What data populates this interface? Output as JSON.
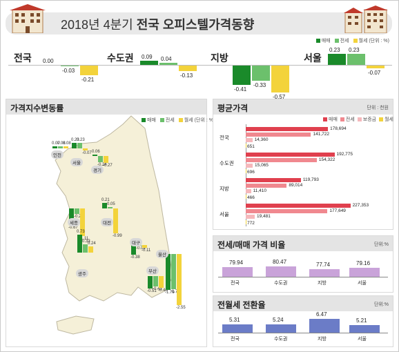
{
  "title": {
    "prefix": "2018년 4분기 ",
    "bold": "전국 오피스텔가격동향"
  },
  "colors": {
    "sale": "#1a8a2a",
    "jeonse": "#6cc06c",
    "wolse": "#f3d33b",
    "avg_sale": "#e0404e",
    "avg_jeonse": "#f0888f",
    "avg_deposit": "#f5b8bb",
    "avg_wolse": "#f3d33b",
    "ratio": "#c9a3d9",
    "conv": "#6b7cc7"
  },
  "legend_top": {
    "sale": "매매",
    "jeonse": "전세",
    "wolse": "월세",
    "unit": "(단위 : %)"
  },
  "summary": [
    {
      "label": "전국",
      "values": [
        "0.00",
        "-0.03",
        "-0.21"
      ],
      "nums": [
        0.0,
        -0.03,
        -0.21
      ]
    },
    {
      "label": "수도권",
      "values": [
        "0.09",
        "0.04",
        "-0.13"
      ],
      "nums": [
        0.09,
        0.04,
        -0.13
      ]
    },
    {
      "label": "지방",
      "values": [
        "-0.41",
        "-0.33",
        "-0.57"
      ],
      "nums": [
        -0.41,
        -0.33,
        -0.57
      ]
    },
    {
      "label": "서울",
      "values": [
        "0.23",
        "0.23",
        "-0.07"
      ],
      "nums": [
        0.23,
        0.23,
        -0.07
      ]
    }
  ],
  "map_panel": {
    "title": "가격지수변동률",
    "legend": {
      "sale": "매매",
      "jeonse": "전세",
      "wolse": "월세",
      "unit": "(단위 : %)"
    },
    "regions": [
      {
        "name": "인천",
        "values": [
          "0.07",
          "0.08",
          "0.08"
        ],
        "nums": [
          0.07,
          0.08,
          0.08
        ]
      },
      {
        "name": "서울",
        "values": [
          "0.23",
          "0.23",
          "-0.07"
        ],
        "nums": [
          0.23,
          0.23,
          -0.07
        ]
      },
      {
        "name": "경기",
        "values": [
          "0.06",
          "-0.24",
          "-0.27"
        ],
        "nums": [
          0.06,
          -0.24,
          -0.27
        ]
      },
      {
        "name": "세종",
        "values": [
          "-0.67",
          "-0.21",
          "-1.11"
        ],
        "nums": [
          -0.67,
          -0.21,
          -1.11
        ]
      },
      {
        "name": "대전",
        "values": [
          "0.21",
          "0.05",
          "-0.99"
        ],
        "nums": [
          0.21,
          0.05,
          -0.99
        ]
      },
      {
        "name": "대구",
        "values": [
          "-0.38",
          "-0.03",
          "-0.11"
        ],
        "nums": [
          -0.38,
          -0.03,
          -0.11
        ]
      },
      {
        "name": "광주",
        "values": [
          "0.73",
          "0.33",
          "0.24"
        ],
        "nums": [
          0.73,
          0.33,
          0.24
        ]
      },
      {
        "name": "부산",
        "values": [
          "-0.51",
          "-0.43",
          "-0.46"
        ],
        "nums": [
          -0.51,
          -0.43,
          -0.46
        ]
      },
      {
        "name": "울산",
        "values": [
          "-1.79",
          "-1.77",
          "-2.55"
        ],
        "nums": [
          -1.79,
          -1.77,
          -2.55
        ]
      }
    ]
  },
  "chart_data": [
    {
      "type": "bar",
      "title": "평균가격",
      "unit": "단위 : 천원",
      "categories": [
        "전국",
        "수도권",
        "지방",
        "서울"
      ],
      "series": [
        {
          "name": "매매",
          "values": [
            178694,
            192775,
            119793,
            227353
          ]
        },
        {
          "name": "전세",
          "values": [
            141722,
            154322,
            89014,
            177649
          ]
        },
        {
          "name": "보증금",
          "values": [
            14360,
            15065,
            11410,
            19481
          ]
        },
        {
          "name": "월세",
          "values": [
            651,
            696,
            466,
            772
          ]
        }
      ],
      "labels": [
        [
          "178,694",
          "141,722",
          "14,360",
          "651"
        ],
        [
          "192,775",
          "154,322",
          "15,065",
          "696"
        ],
        [
          "119,793",
          "89,014",
          "11,410",
          "466"
        ],
        [
          "227,353",
          "177,649",
          "19,481",
          "772"
        ]
      ]
    },
    {
      "type": "bar",
      "title": "전세/매매 가격 비율",
      "unit": "단위:%",
      "categories": [
        "전국",
        "수도권",
        "지방",
        "서울"
      ],
      "values": [
        79.94,
        80.47,
        77.74,
        79.16
      ],
      "labels": [
        "79.94",
        "80.47",
        "77.74",
        "79.16"
      ]
    },
    {
      "type": "bar",
      "title": "전월세 전환율",
      "unit": "단위:%",
      "categories": [
        "전국",
        "수도권",
        "지방",
        "서울"
      ],
      "values": [
        5.31,
        5.24,
        6.47,
        5.21
      ],
      "labels": [
        "5.31",
        "5.24",
        "6.47",
        "5.21"
      ]
    }
  ]
}
